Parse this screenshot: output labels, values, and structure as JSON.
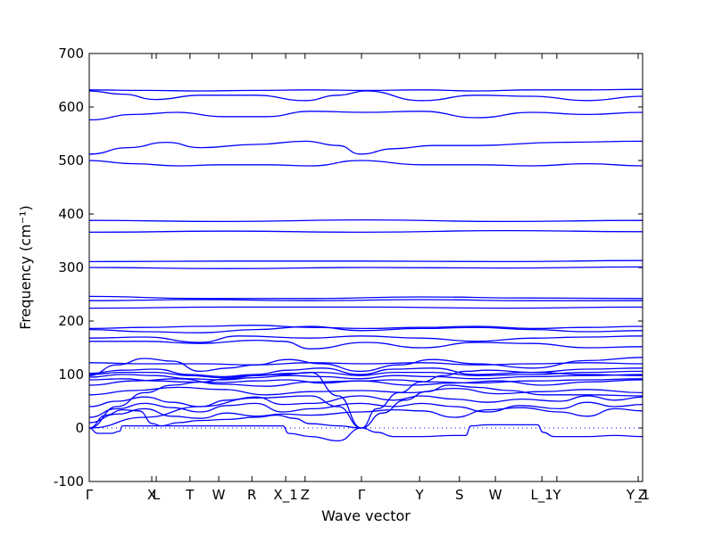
{
  "chart_data": {
    "type": "line",
    "xlabel": "Wave vector",
    "ylabel": "Frequency (cm⁻¹)",
    "ylim": [
      -100,
      700
    ],
    "yticks": [
      -100,
      0,
      100,
      200,
      300,
      400,
      500,
      600,
      700
    ],
    "xlim": [
      0,
      1
    ],
    "high_symmetry_points": [
      {
        "label": "Γ",
        "x": 0.0
      },
      {
        "label": "X",
        "x": 0.113
      },
      {
        "label": "L",
        "x": 0.121
      },
      {
        "label": "T",
        "x": 0.182
      },
      {
        "label": "W",
        "x": 0.234
      },
      {
        "label": "R",
        "x": 0.294
      },
      {
        "label": "X_1",
        "x": 0.355
      },
      {
        "label": "Z",
        "x": 0.39
      },
      {
        "label": "Γ",
        "x": 0.492
      },
      {
        "label": "Y",
        "x": 0.597
      },
      {
        "label": "S",
        "x": 0.669
      },
      {
        "label": "W",
        "x": 0.734
      },
      {
        "label": "L_1",
        "x": 0.818
      },
      {
        "label": "Y",
        "x": 0.845
      },
      {
        "label": "Y_1",
        "x": 0.992
      },
      {
        "label": "Z",
        "x": 1.0
      }
    ],
    "line_color": "#0000ff",
    "zero_line": {
      "y": 0,
      "style": "dotted"
    },
    "series": [
      {
        "x": [
          0,
          0.1,
          0.2,
          0.3,
          0.4,
          0.5,
          0.6,
          0.7,
          0.8,
          0.9,
          1
        ],
        "values": [
          632,
          631,
          630,
          631,
          632,
          631,
          632,
          630,
          632,
          632,
          633
        ]
      },
      {
        "x": [
          0,
          0.06,
          0.12,
          0.2,
          0.3,
          0.39,
          0.45,
          0.5,
          0.6,
          0.7,
          0.8,
          0.9,
          1
        ],
        "values": [
          630,
          624,
          614,
          622,
          622,
          612,
          622,
          630,
          612,
          622,
          620,
          612,
          620
        ]
      },
      {
        "x": [
          0,
          0.08,
          0.16,
          0.24,
          0.32,
          0.4,
          0.5,
          0.6,
          0.7,
          0.8,
          0.9,
          1
        ],
        "values": [
          576,
          586,
          590,
          582,
          582,
          592,
          590,
          592,
          580,
          590,
          586,
          590
        ]
      },
      {
        "x": [
          0,
          0.07,
          0.14,
          0.2,
          0.3,
          0.39,
          0.45,
          0.49,
          0.55,
          0.62,
          0.7,
          0.85,
          1
        ],
        "values": [
          512,
          524,
          534,
          524,
          530,
          536,
          528,
          512,
          522,
          528,
          528,
          534,
          536
        ]
      },
      {
        "x": [
          0,
          0.08,
          0.16,
          0.24,
          0.32,
          0.4,
          0.49,
          0.6,
          0.7,
          0.8,
          0.9,
          1
        ],
        "values": [
          500,
          494,
          490,
          492,
          492,
          490,
          500,
          492,
          492,
          490,
          494,
          490
        ]
      },
      {
        "x": [
          0,
          0.25,
          0.5,
          0.75,
          1
        ],
        "values": [
          388,
          386,
          389,
          386,
          388
        ]
      },
      {
        "x": [
          0,
          0.25,
          0.5,
          0.75,
          1
        ],
        "values": [
          366,
          368,
          366,
          369,
          367
        ]
      },
      {
        "x": [
          0,
          0.25,
          0.5,
          0.75,
          1
        ],
        "values": [
          311,
          312,
          312,
          311,
          313
        ]
      },
      {
        "x": [
          0,
          0.25,
          0.5,
          0.75,
          1
        ],
        "values": [
          300,
          298,
          300,
          299,
          301
        ]
      },
      {
        "x": [
          0,
          0.2,
          0.4,
          0.6,
          0.8,
          1
        ],
        "values": [
          246,
          242,
          242,
          245,
          243,
          242
        ]
      },
      {
        "x": [
          0,
          0.2,
          0.4,
          0.6,
          0.8,
          1
        ],
        "values": [
          238,
          240,
          238,
          240,
          238,
          238
        ]
      },
      {
        "x": [
          0,
          0.25,
          0.5,
          0.75,
          1
        ],
        "values": [
          224,
          226,
          226,
          224,
          226
        ]
      },
      {
        "x": [
          0,
          0.1,
          0.2,
          0.3,
          0.4,
          0.5,
          0.6,
          0.7,
          0.8,
          0.9,
          1
        ],
        "values": [
          186,
          188,
          190,
          192,
          188,
          186,
          188,
          190,
          186,
          188,
          190
        ]
      },
      {
        "x": [
          0,
          0.1,
          0.2,
          0.3,
          0.4,
          0.49,
          0.6,
          0.7,
          0.8,
          0.9,
          1
        ],
        "values": [
          184,
          180,
          178,
          184,
          190,
          182,
          186,
          188,
          184,
          180,
          182
        ]
      },
      {
        "x": [
          0,
          0.1,
          0.2,
          0.27,
          0.4,
          0.49,
          0.6,
          0.7,
          0.8,
          0.9,
          1
        ],
        "values": [
          168,
          170,
          160,
          172,
          168,
          172,
          168,
          162,
          168,
          170,
          172
        ]
      },
      {
        "x": [
          0,
          0.1,
          0.2,
          0.3,
          0.35,
          0.4,
          0.5,
          0.6,
          0.7,
          0.8,
          0.9,
          1
        ],
        "values": [
          162,
          162,
          158,
          164,
          162,
          148,
          160,
          150,
          160,
          158,
          150,
          152
        ]
      },
      {
        "x": [
          0,
          0.1,
          0.2,
          0.3,
          0.4,
          0.5,
          0.6,
          0.7,
          0.8,
          0.9,
          1
        ],
        "values": [
          122,
          120,
          120,
          118,
          122,
          120,
          122,
          118,
          120,
          122,
          120
        ]
      },
      {
        "x": [
          0,
          0.05,
          0.1,
          0.15,
          0.2,
          0.25,
          0.3,
          0.36,
          0.42,
          0.49,
          0.56,
          0.62,
          0.7,
          0.8,
          0.9,
          1
        ],
        "values": [
          98,
          118,
          130,
          125,
          106,
          112,
          118,
          128,
          120,
          106,
          118,
          128,
          120,
          112,
          126,
          132
        ]
      },
      {
        "x": [
          0,
          0.06,
          0.12,
          0.18,
          0.24,
          0.3,
          0.36,
          0.42,
          0.49,
          0.55,
          0.62,
          0.7,
          0.8,
          0.9,
          1
        ],
        "values": [
          102,
          108,
          110,
          100,
          96,
          100,
          108,
          112,
          100,
          110,
          112,
          100,
          104,
          110,
          112
        ]
      },
      {
        "x": [
          0,
          0.06,
          0.12,
          0.18,
          0.24,
          0.3,
          0.36,
          0.42,
          0.49,
          0.55,
          0.62,
          0.7,
          0.8,
          0.9,
          1
        ],
        "values": [
          100,
          104,
          104,
          98,
          94,
          98,
          102,
          104,
          98,
          104,
          104,
          98,
          100,
          104,
          106
        ]
      },
      {
        "x": [
          0,
          0.06,
          0.12,
          0.18,
          0.24,
          0.3,
          0.36,
          0.42,
          0.49,
          0.55,
          0.62,
          0.7,
          0.8,
          0.9,
          1
        ],
        "values": [
          95,
          100,
          98,
          92,
          90,
          94,
          98,
          96,
          92,
          98,
          96,
          92,
          96,
          98,
          100
        ]
      },
      {
        "x": [
          0,
          0.06,
          0.12,
          0.18,
          0.24,
          0.3,
          0.36,
          0.42,
          0.49,
          0.55,
          0.62,
          0.7,
          0.8,
          0.9,
          1
        ],
        "values": [
          90,
          92,
          88,
          86,
          85,
          88,
          90,
          84,
          88,
          90,
          86,
          84,
          88,
          90,
          92
        ]
      },
      {
        "x": [
          0,
          0.08,
          0.16,
          0.24,
          0.32,
          0.4,
          0.49,
          0.58,
          0.66,
          0.74,
          0.82,
          0.9,
          1
        ],
        "values": [
          80,
          88,
          92,
          82,
          78,
          86,
          88,
          80,
          84,
          88,
          80,
          86,
          90
        ]
      },
      {
        "x": [
          0,
          0.08,
          0.16,
          0.24,
          0.32,
          0.4,
          0.49,
          0.58,
          0.66,
          0.74,
          0.82,
          0.9,
          1
        ],
        "values": [
          62,
          70,
          76,
          72,
          62,
          68,
          70,
          66,
          74,
          64,
          68,
          72,
          66
        ]
      },
      {
        "x": [
          0,
          0.05,
          0.1,
          0.15,
          0.2,
          0.25,
          0.3,
          0.35,
          0.4,
          0.49,
          0.55,
          0.6,
          0.66,
          0.72,
          0.78,
          0.85,
          0.9,
          0.95,
          1
        ],
        "values": [
          40,
          50,
          58,
          48,
          40,
          52,
          58,
          44,
          46,
          60,
          52,
          60,
          54,
          48,
          54,
          50,
          60,
          52,
          58
        ]
      },
      {
        "x": [
          0,
          0.05,
          0.1,
          0.15,
          0.2,
          0.25,
          0.3,
          0.35,
          0.4,
          0.49,
          0.55,
          0.6,
          0.66,
          0.72,
          0.78,
          0.85,
          0.9,
          0.95,
          1
        ],
        "values": [
          20,
          36,
          46,
          38,
          30,
          42,
          46,
          30,
          36,
          46,
          40,
          46,
          40,
          30,
          42,
          36,
          48,
          40,
          44
        ]
      },
      {
        "x": [
          0,
          0.05,
          0.1,
          0.15,
          0.2,
          0.25,
          0.3,
          0.35,
          0.4,
          0.49,
          0.55,
          0.6,
          0.66,
          0.72,
          0.78,
          0.85,
          0.9,
          0.95,
          1
        ],
        "values": [
          10,
          26,
          36,
          22,
          18,
          28,
          22,
          26,
          24,
          30,
          34,
          32,
          20,
          34,
          38,
          30,
          22,
          36,
          32
        ]
      },
      {
        "x": [
          0,
          0.03,
          0.06,
          0.09,
          0.115,
          0.13,
          0.16,
          0.2,
          0.25,
          0.3,
          0.34,
          0.37,
          0.4,
          0.45,
          0.492
        ],
        "values": [
          0,
          24,
          34,
          32,
          8,
          4,
          10,
          14,
          16,
          20,
          24,
          18,
          8,
          4,
          0
        ]
      },
      {
        "x": [
          0,
          0.015,
          0.04,
          0.055,
          0.06,
          0.1,
          0.2,
          0.3,
          0.35,
          0.36,
          0.4,
          0.45,
          0.492
        ],
        "values": [
          0,
          -10,
          -10,
          -6,
          4,
          4,
          4,
          4,
          4,
          -10,
          -16,
          -24,
          0
        ]
      },
      {
        "x": [
          0.492,
          0.52,
          0.55,
          0.56,
          0.6,
          0.66,
          0.68,
          0.69,
          0.72,
          0.8,
          0.81,
          0.82,
          0.84,
          0.9,
          0.95,
          1
        ],
        "values": [
          0,
          -8,
          -16,
          -16,
          -16,
          -14,
          -14,
          4,
          6,
          6,
          6,
          -8,
          -16,
          -16,
          -14,
          -16
        ]
      },
      {
        "x": [
          0,
          0.05,
          0.1,
          0.15,
          0.2,
          0.25,
          0.3,
          0.35,
          0.4,
          0.45,
          0.492
        ],
        "values": [
          0,
          40,
          66,
          80,
          86,
          92,
          98,
          100,
          104,
          60,
          0
        ]
      },
      {
        "x": [
          0,
          0.1,
          0.2,
          0.3,
          0.4,
          0.45,
          0.492
        ],
        "values": [
          0,
          20,
          40,
          56,
          60,
          40,
          0
        ]
      },
      {
        "x": [
          0.492,
          0.52,
          0.56,
          0.6,
          0.64,
          0.68,
          0.72,
          0.8,
          0.9,
          1
        ],
        "values": [
          0,
          36,
          66,
          86,
          98,
          106,
          108,
          104,
          100,
          98
        ]
      },
      {
        "x": [
          0.492,
          0.53,
          0.57,
          0.61,
          0.65,
          0.7,
          0.76,
          0.82,
          0.9,
          1
        ],
        "values": [
          0,
          28,
          52,
          68,
          80,
          76,
          70,
          62,
          62,
          60
        ]
      }
    ]
  }
}
